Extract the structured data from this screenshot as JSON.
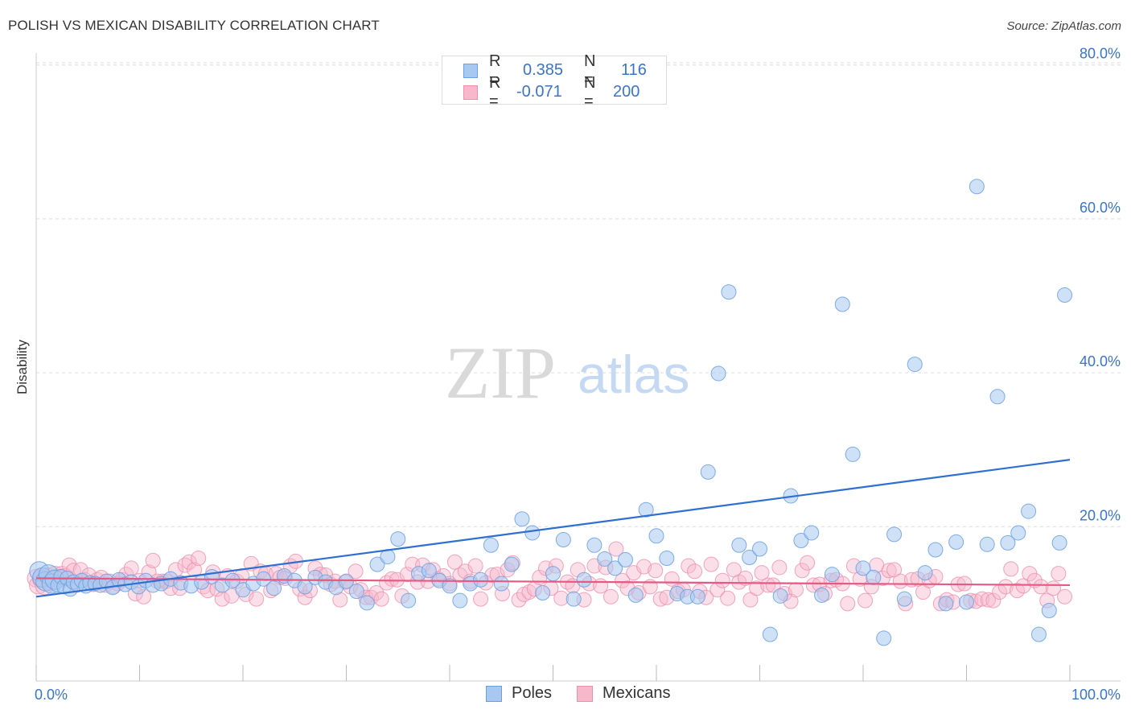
{
  "title": "POLISH VS MEXICAN DISABILITY CORRELATION CHART",
  "source": "Source: ZipAtlas.com",
  "watermark": {
    "zip": "ZIP",
    "atlas": "atlas"
  },
  "legend_top": {
    "poles": {
      "r_label": "R =",
      "r_value": "0.385",
      "n_label": "N =",
      "n_value": "116"
    },
    "mexicans": {
      "r_label": "R =",
      "r_value": "-0.071",
      "n_label": "N =",
      "n_value": "200"
    }
  },
  "colors": {
    "poles_fill": "#a8c8f0",
    "poles_stroke": "#6a9fe0",
    "poles_line": "#2f6fd0",
    "mexicans_fill": "#f7b8cb",
    "mexicans_stroke": "#ee8fac",
    "mexicans_line": "#e45a85",
    "axis_text": "#3a74c9",
    "grid": "#dddddd"
  },
  "chart_data": {
    "type": "scatter",
    "title": "POLISH VS MEXICAN DISABILITY CORRELATION CHART",
    "xlabel": "",
    "ylabel": "Disability",
    "xlim": [
      0,
      100
    ],
    "ylim": [
      0,
      80
    ],
    "x_tick_labels": [
      "0.0%",
      "100.0%"
    ],
    "y_ticks": [
      20,
      40,
      60,
      80
    ],
    "y_tick_labels": [
      "20.0%",
      "40.0%",
      "60.0%",
      "80.0%"
    ],
    "grid": true,
    "legend_position": "bottom",
    "series": [
      {
        "name": "Poles",
        "r": 0.385,
        "n": 116,
        "trend": {
          "x": [
            0,
            100
          ],
          "y": [
            10.9,
            28.7
          ]
        },
        "points": [
          [
            0.3,
            14.2
          ],
          [
            0.6,
            13.4
          ],
          [
            0.9,
            12.9
          ],
          [
            1.2,
            13.8
          ],
          [
            1.5,
            12.6
          ],
          [
            1.8,
            13.1
          ],
          [
            2.1,
            12.4
          ],
          [
            2.4,
            13.5
          ],
          [
            2.7,
            12.2
          ],
          [
            3.0,
            13.3
          ],
          [
            3.3,
            11.9
          ],
          [
            3.6,
            12.8
          ],
          [
            4.0,
            12.5
          ],
          [
            4.4,
            13.0
          ],
          [
            4.8,
            12.3
          ],
          [
            5.2,
            12.7
          ],
          [
            5.7,
            12.6
          ],
          [
            6.2,
            12.4
          ],
          [
            6.8,
            12.9
          ],
          [
            7.4,
            12.1
          ],
          [
            8.0,
            13.1
          ],
          [
            8.6,
            12.5
          ],
          [
            9.2,
            12.8
          ],
          [
            9.9,
            12.2
          ],
          [
            10.6,
            13.0
          ],
          [
            11.3,
            12.4
          ],
          [
            12.1,
            12.6
          ],
          [
            13.0,
            13.2
          ],
          [
            14.0,
            12.7
          ],
          [
            15.0,
            12.3
          ],
          [
            16.0,
            12.8
          ],
          [
            17.0,
            13.5
          ],
          [
            18.0,
            12.4
          ],
          [
            19.0,
            13.0
          ],
          [
            20.0,
            11.8
          ],
          [
            21.0,
            12.6
          ],
          [
            22.0,
            13.2
          ],
          [
            23.0,
            12.0
          ],
          [
            24.0,
            13.6
          ],
          [
            25.0,
            13.0
          ],
          [
            26.0,
            12.2
          ],
          [
            27.0,
            13.4
          ],
          [
            28.0,
            12.8
          ],
          [
            29.0,
            12.1
          ],
          [
            30.0,
            12.9
          ],
          [
            31.0,
            11.6
          ],
          [
            32.0,
            10.1
          ],
          [
            33.0,
            15.1
          ],
          [
            34.0,
            16.1
          ],
          [
            35.0,
            18.4
          ],
          [
            36.0,
            10.4
          ],
          [
            37.0,
            13.9
          ],
          [
            38.0,
            14.3
          ],
          [
            39.0,
            13.0
          ],
          [
            40.0,
            12.3
          ],
          [
            41.0,
            10.4
          ],
          [
            42.0,
            12.6
          ],
          [
            43.0,
            13.1
          ],
          [
            44.0,
            17.6
          ],
          [
            45.0,
            12.6
          ],
          [
            46.0,
            15.1
          ],
          [
            47.0,
            21.0
          ],
          [
            48.0,
            19.2
          ],
          [
            49.0,
            11.4
          ],
          [
            50.0,
            13.9
          ],
          [
            51.0,
            18.3
          ],
          [
            52.0,
            10.6
          ],
          [
            53.0,
            13.1
          ],
          [
            54.0,
            17.6
          ],
          [
            55.0,
            15.8
          ],
          [
            56.0,
            14.6
          ],
          [
            57.0,
            15.7
          ],
          [
            58.0,
            11.1
          ],
          [
            59.0,
            22.2
          ],
          [
            60.0,
            18.8
          ],
          [
            61.0,
            15.9
          ],
          [
            62.0,
            11.3
          ],
          [
            63.0,
            10.9
          ],
          [
            64.0,
            10.9
          ],
          [
            65.0,
            27.1
          ],
          [
            66.0,
            39.9
          ],
          [
            67.0,
            50.5
          ],
          [
            68.0,
            17.6
          ],
          [
            69.0,
            16.0
          ],
          [
            70.0,
            17.1
          ],
          [
            71.0,
            6.0
          ],
          [
            72.0,
            11.0
          ],
          [
            73.0,
            24.0
          ],
          [
            74.0,
            18.2
          ],
          [
            75.0,
            19.2
          ],
          [
            76.0,
            11.1
          ],
          [
            77.0,
            13.8
          ],
          [
            78.0,
            48.9
          ],
          [
            79.0,
            29.4
          ],
          [
            80.0,
            14.6
          ],
          [
            81.0,
            13.4
          ],
          [
            82.0,
            5.5
          ],
          [
            83.0,
            19.0
          ],
          [
            84.0,
            10.6
          ],
          [
            85.0,
            41.1
          ],
          [
            86.0,
            14.0
          ],
          [
            87.0,
            17.0
          ],
          [
            88.0,
            10.0
          ],
          [
            89.0,
            18.0
          ],
          [
            90.0,
            10.2
          ],
          [
            91.0,
            64.2
          ],
          [
            92.0,
            17.7
          ],
          [
            93.0,
            36.9
          ],
          [
            94.0,
            17.9
          ],
          [
            95.0,
            19.2
          ],
          [
            96.0,
            22.0
          ],
          [
            97.0,
            6.0
          ],
          [
            98.0,
            9.1
          ],
          [
            99.0,
            17.9
          ],
          [
            99.5,
            50.1
          ]
        ]
      },
      {
        "name": "Mexicans",
        "r": -0.071,
        "n": 200,
        "trend": {
          "x": [
            0,
            100
          ],
          "y": [
            13.3,
            12.4
          ]
        },
        "points": []
      }
    ]
  }
}
